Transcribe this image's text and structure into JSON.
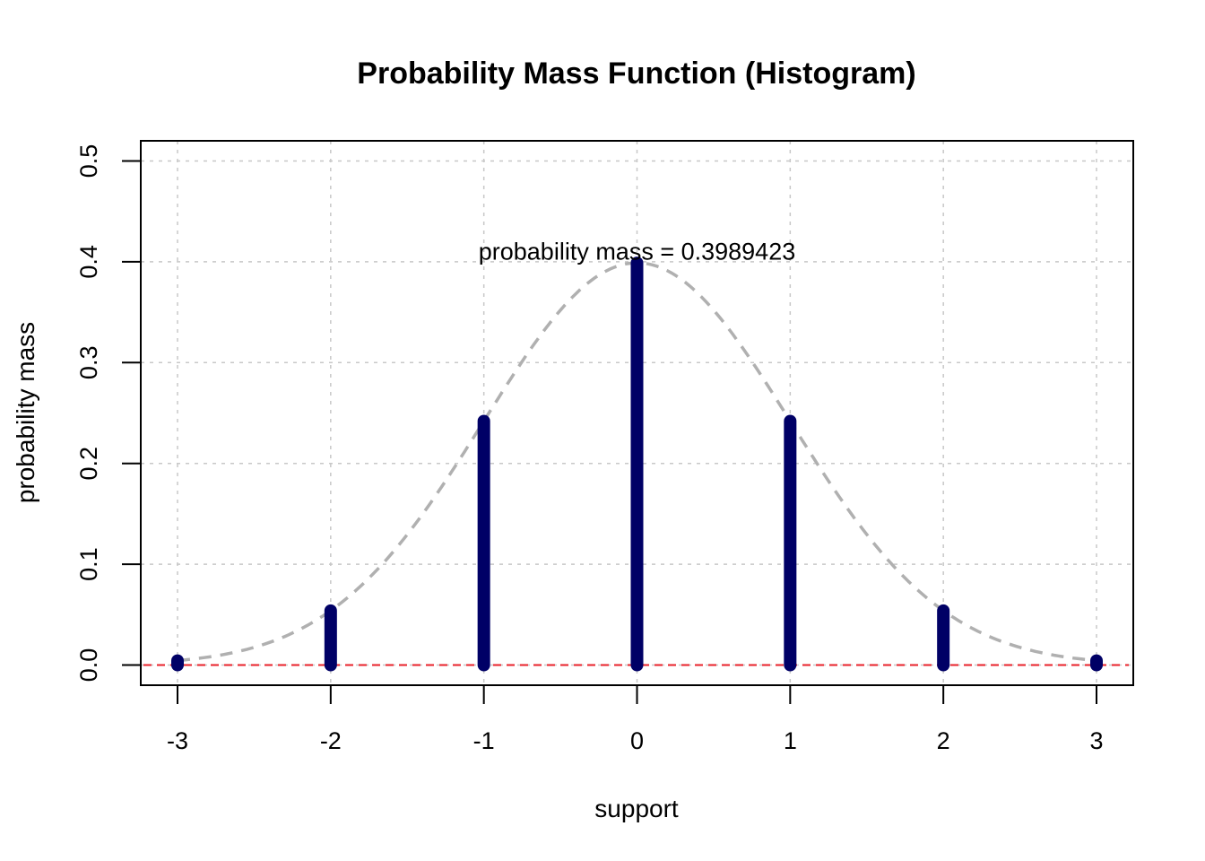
{
  "chart_data": {
    "type": "bar",
    "title": "Probability Mass Function (Histogram)",
    "xlabel": "support",
    "ylabel": "probability mass",
    "xlim": [
      -3.24,
      3.24
    ],
    "ylim": [
      -0.02,
      0.52
    ],
    "x_ticks": [
      "-3",
      "-2",
      "-1",
      "0",
      "1",
      "2",
      "3"
    ],
    "y_ticks": [
      "0.0",
      "0.1",
      "0.2",
      "0.3",
      "0.4",
      "0.5"
    ],
    "grid": true,
    "x": [
      -3,
      -2,
      -1,
      0,
      1,
      2,
      3
    ],
    "values": [
      0.0044,
      0.054,
      0.242,
      0.3989423,
      0.242,
      0.054,
      0.0044
    ],
    "bar_color": "#000066",
    "curve": {
      "type": "normal-density",
      "mean": 0,
      "sd": 1,
      "color": "#b0b0b0",
      "style": "dashed"
    },
    "hline": {
      "y": 0,
      "color": "#e8202a",
      "style": "dashed"
    },
    "annotation": {
      "text": "probability mass = 0.3989423",
      "x": 0,
      "y": 0.41
    }
  }
}
